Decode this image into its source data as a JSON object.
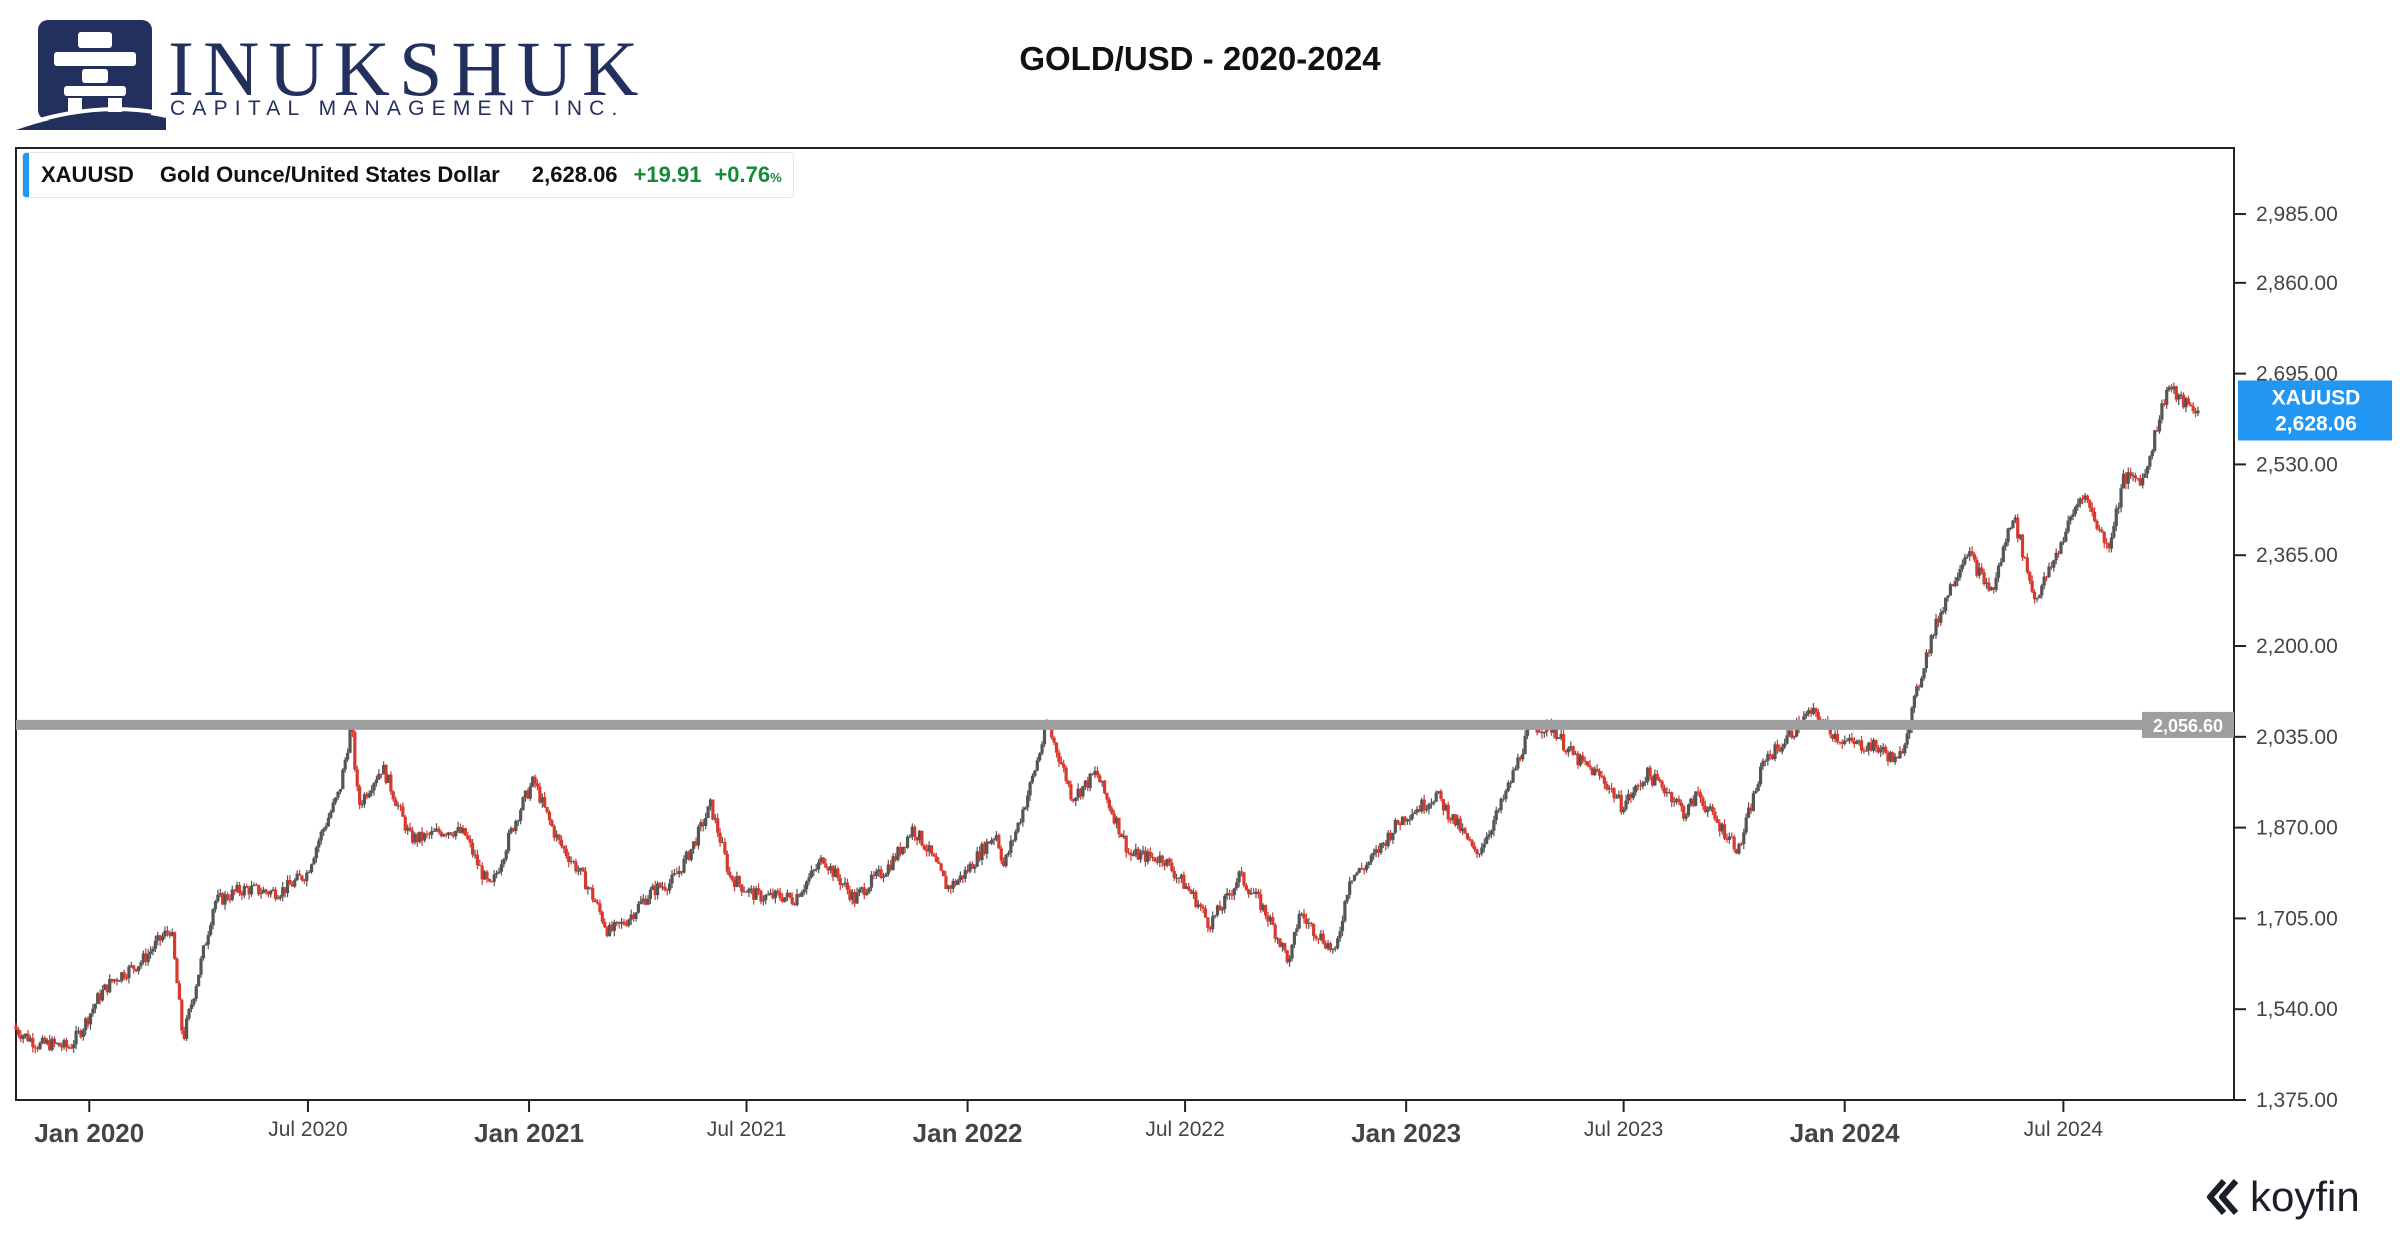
{
  "title": "GOLD/USD - 2020-2024",
  "brand": {
    "name": "INUKSHUK",
    "subtitle": "CAPITAL MANAGEMENT INC.",
    "logo_icon": "inukshuk-logo-icon",
    "color": "#23305e"
  },
  "legend": {
    "ticker": "XAUUSD",
    "name": "Gold Ounce/United States Dollar",
    "price": "2,628.06",
    "change": "+19.91",
    "change_pct": "+0.76",
    "pct_unit": "%"
  },
  "footer": {
    "brand": "koyfin",
    "icon": "koyfin-logo-icon"
  },
  "colors": {
    "up": "#555555",
    "down": "#d63a2f",
    "level_line": "#9e9e9e",
    "price_tag": "#2196f3",
    "change_positive": "#178a3a",
    "axis": "#444444"
  },
  "chart_data": {
    "type": "candlestick",
    "series": [
      {
        "name": "XAUUSD",
        "last_value": 2628.06,
        "last_label": "2,628.06",
        "x_end": "2024-10-22"
      }
    ],
    "x_range": [
      "2019-11-01",
      "2024-11-20"
    ],
    "y_range": [
      1375,
      3105
    ],
    "y_ticks": [
      {
        "v": 1375,
        "label": "1,375.00"
      },
      {
        "v": 1540,
        "label": "1,540.00"
      },
      {
        "v": 1705,
        "label": "1,705.00"
      },
      {
        "v": 1870,
        "label": "1,870.00"
      },
      {
        "v": 2035,
        "label": "2,035.00"
      },
      {
        "v": 2200,
        "label": "2,200.00"
      },
      {
        "v": 2365,
        "label": "2,365.00"
      },
      {
        "v": 2530,
        "label": "2,530.00"
      },
      {
        "v": 2695,
        "label": "2,695.00"
      },
      {
        "v": 2860,
        "label": "2,860.00"
      },
      {
        "v": 2985,
        "label": "2,985.00"
      }
    ],
    "x_ticks": [
      {
        "date": "2020-01-01",
        "label": "Jan 2020",
        "major": true
      },
      {
        "date": "2020-07-01",
        "label": "Jul 2020",
        "major": false
      },
      {
        "date": "2021-01-01",
        "label": "Jan 2021",
        "major": true
      },
      {
        "date": "2021-07-01",
        "label": "Jul 2021",
        "major": false
      },
      {
        "date": "2022-01-01",
        "label": "Jan 2022",
        "major": true
      },
      {
        "date": "2022-07-01",
        "label": "Jul 2022",
        "major": false
      },
      {
        "date": "2023-01-01",
        "label": "Jan 2023",
        "major": true
      },
      {
        "date": "2023-07-01",
        "label": "Jul 2023",
        "major": false
      },
      {
        "date": "2024-01-01",
        "label": "Jan 2024",
        "major": true
      },
      {
        "date": "2024-07-01",
        "label": "Jul 2024",
        "major": false
      }
    ],
    "horizontal_level": {
      "value": 2056.6,
      "label": "2,056.60"
    },
    "price_path": [
      [
        "2019-11-01",
        1510
      ],
      [
        "2019-11-20",
        1465
      ],
      [
        "2019-12-15",
        1478
      ],
      [
        "2020-01-08",
        1555
      ],
      [
        "2020-02-24",
        1660
      ],
      [
        "2020-03-09",
        1680
      ],
      [
        "2020-03-19",
        1475
      ],
      [
        "2020-04-14",
        1745
      ],
      [
        "2020-05-18",
        1750
      ],
      [
        "2020-06-30",
        1780
      ],
      [
        "2020-07-27",
        1940
      ],
      [
        "2020-08-06",
        2065
      ],
      [
        "2020-08-12",
        1915
      ],
      [
        "2020-09-01",
        1970
      ],
      [
        "2020-09-24",
        1860
      ],
      [
        "2020-11-09",
        1855
      ],
      [
        "2020-11-30",
        1765
      ],
      [
        "2021-01-05",
        1955
      ],
      [
        "2021-01-26",
        1850
      ],
      [
        "2021-03-08",
        1685
      ],
      [
        "2021-04-29",
        1770
      ],
      [
        "2021-06-01",
        1905
      ],
      [
        "2021-06-17",
        1775
      ],
      [
        "2021-08-09",
        1730
      ],
      [
        "2021-09-03",
        1825
      ],
      [
        "2021-09-29",
        1730
      ],
      [
        "2021-11-16",
        1865
      ],
      [
        "2021-12-15",
        1765
      ],
      [
        "2022-01-25",
        1850
      ],
      [
        "2022-01-31",
        1795
      ],
      [
        "2022-03-08",
        2055
      ],
      [
        "2022-03-29",
        1920
      ],
      [
        "2022-04-18",
        1980
      ],
      [
        "2022-05-16",
        1810
      ],
      [
        "2022-06-13",
        1825
      ],
      [
        "2022-07-21",
        1690
      ],
      [
        "2022-08-15",
        1790
      ],
      [
        "2022-09-26",
        1630
      ],
      [
        "2022-10-04",
        1725
      ],
      [
        "2022-11-03",
        1630
      ],
      [
        "2022-11-15",
        1780
      ],
      [
        "2023-01-26",
        1940
      ],
      [
        "2023-02-28",
        1810
      ],
      [
        "2023-04-13",
        2040
      ],
      [
        "2023-05-04",
        2050
      ],
      [
        "2023-06-29",
        1910
      ],
      [
        "2023-07-20",
        1975
      ],
      [
        "2023-08-21",
        1890
      ],
      [
        "2023-09-01",
        1940
      ],
      [
        "2023-10-05",
        1820
      ],
      [
        "2023-10-27",
        2005
      ],
      [
        "2023-12-04",
        2070
      ],
      [
        "2024-01-18",
        2015
      ],
      [
        "2024-02-14",
        1990
      ],
      [
        "2024-03-08",
        2180
      ],
      [
        "2024-04-12",
        2380
      ],
      [
        "2024-05-03",
        2300
      ],
      [
        "2024-05-20",
        2430
      ],
      [
        "2024-06-07",
        2290
      ],
      [
        "2024-07-17",
        2470
      ],
      [
        "2024-08-07",
        2385
      ],
      [
        "2024-08-20",
        2510
      ],
      [
        "2024-09-06",
        2495
      ],
      [
        "2024-09-26",
        2675
      ],
      [
        "2024-10-22",
        2628.06
      ]
    ]
  }
}
